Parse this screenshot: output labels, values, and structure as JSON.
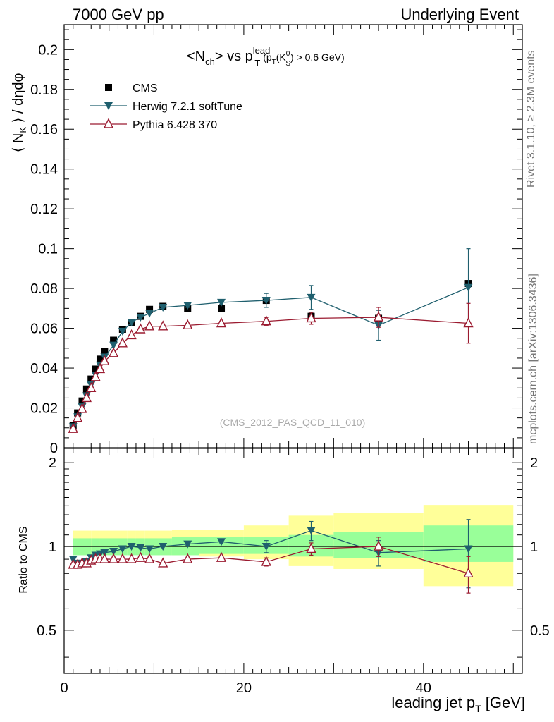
{
  "header": {
    "left": "7000 GeV pp",
    "right": "Underlying Event"
  },
  "side_labels": {
    "rivet": "Rivet 3.1.10, ≥ 2.3M events",
    "mcplots": "mcplots.cern.ch [arXiv:1306.3436]"
  },
  "title": {
    "base": "<N",
    "sub": "ch",
    "rest": "> vs p",
    "sup": "lead",
    "sub2": "T",
    "cond": "(p",
    "cond_sub": "T",
    "cond_k": "(K",
    "cond_ksup": "0",
    "cond_ksub": "S",
    "cond_tail": ") > 0.6 GeV)"
  },
  "watermark": "(CMS_2012_PAS_QCD_11_010)",
  "legend": [
    {
      "label": "CMS",
      "marker": "square",
      "color": "#000000"
    },
    {
      "label": "Herwig 7.2.1 softTune",
      "marker": "triangle-down",
      "color": "#1f5f6e"
    },
    {
      "label": "Pythia 6.428 370",
      "marker": "triangle-up-open",
      "color": "#9b1b30"
    }
  ],
  "chart_data": [
    {
      "type": "scatter",
      "panel": "main",
      "ylabel": "⟨ N_K ⟩ / dηdφ",
      "xlim": [
        0,
        51
      ],
      "ylim": [
        0,
        0.2125
      ],
      "y_ticks": [
        "0",
        "0.02",
        "0.04",
        "0.06",
        "0.08",
        "0.1",
        "0.12",
        "0.14",
        "0.16",
        "0.18",
        "0.2"
      ],
      "y_tick_values": [
        0,
        0.02,
        0.04,
        0.06,
        0.08,
        0.1,
        0.12,
        0.14,
        0.16,
        0.18,
        0.2
      ],
      "series": [
        {
          "name": "CMS",
          "x": [
            1.0,
            1.5,
            2.0,
            2.5,
            3.0,
            3.5,
            4.0,
            4.5,
            5.5,
            6.5,
            7.5,
            8.5,
            9.5,
            11.0,
            13.75,
            17.5,
            22.5,
            27.5,
            35.0,
            45.0
          ],
          "y": [
            0.011,
            0.0175,
            0.0235,
            0.0295,
            0.0345,
            0.0395,
            0.0445,
            0.0485,
            0.054,
            0.0595,
            0.063,
            0.066,
            0.0695,
            0.071,
            0.07,
            0.07,
            0.074,
            0.066,
            0.065,
            0.0825
          ]
        },
        {
          "name": "Herwig 7.2.1 softTune",
          "x": [
            1.0,
            1.5,
            2.0,
            2.5,
            3.0,
            3.5,
            4.0,
            4.5,
            5.5,
            6.5,
            7.5,
            8.5,
            9.5,
            11.0,
            13.75,
            17.5,
            22.5,
            27.5,
            35.0,
            45.0
          ],
          "y": [
            0.0105,
            0.0155,
            0.0205,
            0.026,
            0.0315,
            0.0365,
            0.0415,
            0.0455,
            0.0515,
            0.0585,
            0.063,
            0.0655,
            0.0675,
            0.0705,
            0.0715,
            0.073,
            0.074,
            0.0755,
            0.0615,
            0.0805
          ],
          "yerr": [
            0,
            0,
            0,
            0,
            0,
            0,
            0,
            0,
            0,
            0,
            0,
            0,
            0,
            0,
            0.001,
            0.001,
            0.0035,
            0.006,
            0.0075,
            0.0195
          ]
        },
        {
          "name": "Pythia 6.428 370",
          "x": [
            1.0,
            1.5,
            2.0,
            2.5,
            3.0,
            3.5,
            4.0,
            4.5,
            5.5,
            6.5,
            7.5,
            8.5,
            9.5,
            11.0,
            13.75,
            17.5,
            22.5,
            27.5,
            35.0,
            45.0
          ],
          "y": [
            0.0095,
            0.015,
            0.0195,
            0.025,
            0.03,
            0.0355,
            0.0395,
            0.0435,
            0.0475,
            0.0525,
            0.0565,
            0.0595,
            0.061,
            0.061,
            0.0615,
            0.0625,
            0.0635,
            0.065,
            0.0655,
            0.0625
          ],
          "yerr": [
            0,
            0,
            0,
            0,
            0,
            0,
            0,
            0,
            0,
            0,
            0,
            0,
            0,
            0,
            0.001,
            0.001,
            0.002,
            0.003,
            0.005,
            0.01
          ]
        }
      ]
    },
    {
      "type": "scatter",
      "panel": "ratio",
      "ylabel": "Ratio to CMS",
      "xlabel": "leading jet p_T [GeV]",
      "xlim": [
        0,
        51
      ],
      "ylim": [
        0.35,
        2.25
      ],
      "y_ticks": [
        "0.5",
        "1",
        "2"
      ],
      "y_tick_values": [
        0.5,
        1,
        2
      ],
      "x_ticks": [
        "0",
        "20",
        "40"
      ],
      "x_tick_values": [
        0,
        20,
        40
      ],
      "bands": {
        "x_edges": [
          1,
          2,
          3,
          4,
          5,
          6,
          7,
          8,
          9,
          10,
          12,
          15,
          20,
          25,
          30,
          40,
          50
        ],
        "green": [
          [
            0.93,
            1.07
          ],
          [
            0.93,
            1.07
          ],
          [
            0.93,
            1.07
          ],
          [
            0.93,
            1.07
          ],
          [
            0.93,
            1.07
          ],
          [
            0.93,
            1.07
          ],
          [
            0.93,
            1.07
          ],
          [
            0.93,
            1.07
          ],
          [
            0.93,
            1.07
          ],
          [
            0.93,
            1.07
          ],
          [
            0.93,
            1.08
          ],
          [
            0.94,
            1.08
          ],
          [
            0.94,
            1.08
          ],
          [
            0.92,
            1.1
          ],
          [
            0.91,
            1.13
          ],
          [
            0.88,
            1.19
          ],
          [
            0.88,
            1.22
          ]
        ],
        "yellow": [
          [
            0.95,
            1.14
          ],
          [
            0.95,
            1.14
          ],
          [
            0.95,
            1.14
          ],
          [
            0.95,
            1.14
          ],
          [
            0.95,
            1.14
          ],
          [
            0.95,
            1.14
          ],
          [
            0.95,
            1.14
          ],
          [
            0.95,
            1.14
          ],
          [
            0.95,
            1.14
          ],
          [
            0.95,
            1.14
          ],
          [
            0.93,
            1.15
          ],
          [
            0.92,
            1.15
          ],
          [
            0.9,
            1.19
          ],
          [
            0.85,
            1.29
          ],
          [
            0.83,
            1.32
          ],
          [
            0.72,
            1.41
          ],
          [
            0.72,
            1.43
          ]
        ]
      },
      "series": [
        {
          "name": "Herwig 7.2.1 softTune",
          "x": [
            1.0,
            1.5,
            2.0,
            2.5,
            3.0,
            3.5,
            4.0,
            4.5,
            5.5,
            6.5,
            7.5,
            8.5,
            9.5,
            11.0,
            13.75,
            17.5,
            22.5,
            27.5,
            35.0,
            45.0
          ],
          "y": [
            0.9,
            0.87,
            0.87,
            0.88,
            0.91,
            0.93,
            0.94,
            0.95,
            0.96,
            0.98,
            1.0,
            0.99,
            0.98,
            1.0,
            1.02,
            1.04,
            1.0,
            1.14,
            0.95,
            0.98
          ],
          "yerr": [
            0,
            0,
            0,
            0,
            0,
            0,
            0,
            0,
            0,
            0,
            0,
            0,
            0,
            0,
            0.01,
            0.01,
            0.05,
            0.09,
            0.1,
            0.27
          ]
        },
        {
          "name": "Pythia 6.428 370",
          "x": [
            1.0,
            1.5,
            2.0,
            2.5,
            3.0,
            3.5,
            4.0,
            4.5,
            5.5,
            6.5,
            7.5,
            8.5,
            9.5,
            11.0,
            13.75,
            17.5,
            22.5,
            27.5,
            35.0,
            45.0
          ],
          "y": [
            0.86,
            0.86,
            0.87,
            0.87,
            0.89,
            0.9,
            0.9,
            0.9,
            0.9,
            0.9,
            0.9,
            0.91,
            0.9,
            0.87,
            0.9,
            0.91,
            0.88,
            0.98,
            1.0,
            0.8
          ],
          "yerr": [
            0,
            0,
            0,
            0,
            0,
            0,
            0,
            0,
            0,
            0,
            0,
            0,
            0,
            0,
            0.01,
            0.01,
            0.03,
            0.05,
            0.08,
            0.12
          ]
        }
      ]
    }
  ]
}
